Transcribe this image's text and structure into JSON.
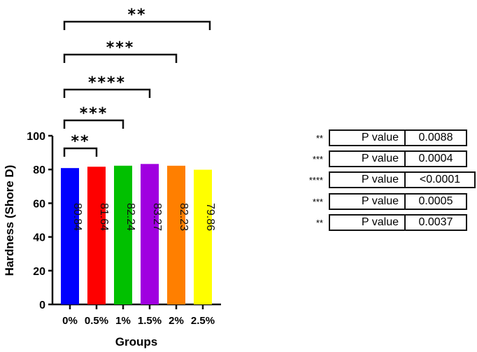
{
  "chart_data": {
    "type": "bar",
    "title": "",
    "xlabel": "Groups",
    "ylabel": "Hardness (Shore D)",
    "ylim": [
      0,
      100
    ],
    "yticks": [
      "0",
      "20",
      "40",
      "60",
      "80",
      "100"
    ],
    "categories": [
      "0%",
      "0.5%",
      "1%",
      "1.5%",
      "2%",
      "2.5%"
    ],
    "values": [
      80.84,
      81.64,
      82.24,
      83.27,
      82.23,
      79.86
    ],
    "data_labels": [
      "80.84",
      "81.64",
      "82.24",
      "83.27",
      "82.23",
      "79.86"
    ],
    "colors": [
      "#0000ff",
      "#ff0000",
      "#00c000",
      "#a000e0",
      "#ff8000",
      "#ffff00"
    ],
    "comparisons": [
      {
        "from": "0%",
        "to": "0.5%",
        "stars": "**"
      },
      {
        "from": "0%",
        "to": "1%",
        "stars": "***"
      },
      {
        "from": "0%",
        "to": "1.5%",
        "stars": "****"
      },
      {
        "from": "0%",
        "to": "2%",
        "stars": "***"
      },
      {
        "from": "0%",
        "to": "2.5%",
        "stars": "**"
      }
    ]
  },
  "pvalues": [
    {
      "stars": "**",
      "label": "P value",
      "value": "0.0088"
    },
    {
      "stars": "***",
      "label": "P value",
      "value": "0.0004"
    },
    {
      "stars": "****",
      "label": "P value",
      "value": "<0.0001"
    },
    {
      "stars": "***",
      "label": "P value",
      "value": "0.0005"
    },
    {
      "stars": "**",
      "label": "P value",
      "value": "0.0037"
    }
  ]
}
